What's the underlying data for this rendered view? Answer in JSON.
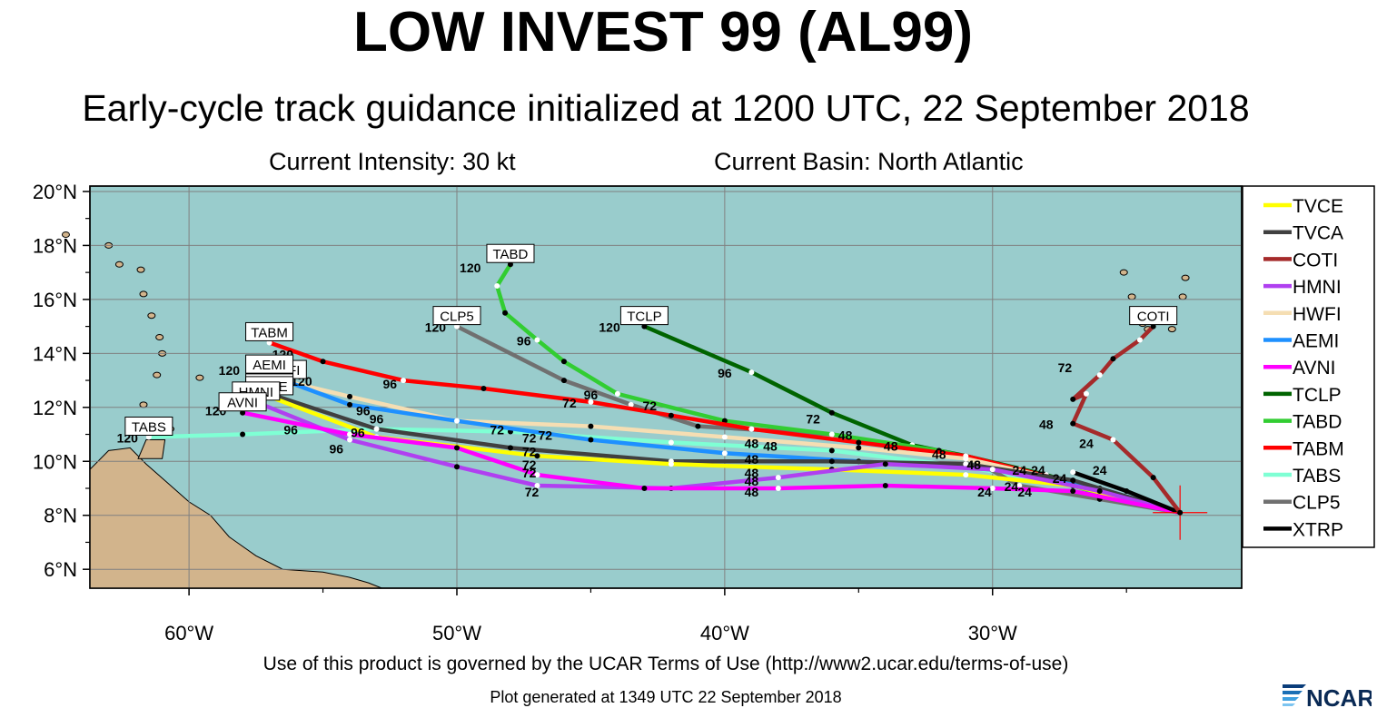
{
  "title": "LOW INVEST 99 (AL99)",
  "subtitle": "Early-cycle track guidance initialized at 1200 UTC, 22 September 2018",
  "current_intensity": "Current Intensity: 30 kt",
  "current_basin": "Current Basin: North Atlantic",
  "terms": "Use of this product is governed by the UCAR Terms of Use (http://www2.ucar.edu/terms-of-use)",
  "generated": "Plot generated at 1349 UTC   22 September 2018",
  "logo_text": "NCAR",
  "colors": {
    "ocean": "#99cccc",
    "land": "#d2b48c",
    "grid": "#808080"
  },
  "map": {
    "lon_range": [
      -63.7,
      -20.7
    ],
    "lat_range": [
      5.3,
      20.2
    ],
    "lat_ticks": [
      {
        "value": 20,
        "label": "20°N"
      },
      {
        "value": 18,
        "label": "18°N"
      },
      {
        "value": 16,
        "label": "16°N"
      },
      {
        "value": 14,
        "label": "14°N"
      },
      {
        "value": 12,
        "label": "12°N"
      },
      {
        "value": 10,
        "label": "10°N"
      },
      {
        "value": 8,
        "label": "8°N"
      },
      {
        "value": 6,
        "label": "6°N"
      }
    ],
    "lon_ticks": [
      {
        "value": -60,
        "label": "60°W"
      },
      {
        "value": -50,
        "label": "50°W"
      },
      {
        "value": -40,
        "label": "40°W"
      },
      {
        "value": -30,
        "label": "30°W"
      }
    ],
    "storm_position": {
      "lon": -23.0,
      "lat": 8.1
    }
  },
  "legend": [
    {
      "name": "TVCE",
      "color": "#ffff00"
    },
    {
      "name": "TVCA",
      "color": "#404040"
    },
    {
      "name": "COTI",
      "color": "#a52a2a"
    },
    {
      "name": "HMNI",
      "color": "#b040f0"
    },
    {
      "name": "HWFI",
      "color": "#f5deb3"
    },
    {
      "name": "AEMI",
      "color": "#1e90ff"
    },
    {
      "name": "AVNI",
      "color": "#ff00ff"
    },
    {
      "name": "TCLP",
      "color": "#006400"
    },
    {
      "name": "TABD",
      "color": "#32cd32"
    },
    {
      "name": "TABM",
      "color": "#ff0000"
    },
    {
      "name": "TABS",
      "color": "#7fffd4"
    },
    {
      "name": "CLP5",
      "color": "#707070"
    },
    {
      "name": "XTRP",
      "color": "#000000"
    }
  ],
  "tracks": [
    {
      "name": "TABS",
      "color": "#7fffd4",
      "label": "TABS",
      "points": [
        [
          -23.0,
          8.1
        ],
        [
          -26.5,
          9.0
        ],
        [
          -31.0,
          9.8
        ],
        [
          -36.0,
          10.4
        ],
        [
          -42.0,
          10.7
        ],
        [
          -48.0,
          11.1
        ],
        [
          -53.0,
          11.2
        ],
        [
          -58.0,
          11.0
        ],
        [
          -61.5,
          10.9
        ]
      ]
    },
    {
      "name": "CLP5",
      "color": "#707070",
      "label": "CLP5",
      "points": [
        [
          -23.0,
          8.1
        ],
        [
          -26.0,
          8.6
        ],
        [
          -29.0,
          9.1
        ],
        [
          -31.0,
          10.2
        ],
        [
          -36.0,
          11.0
        ],
        [
          -41.0,
          11.3
        ],
        [
          -43.5,
          12.1
        ],
        [
          -46.0,
          13.0
        ],
        [
          -50.0,
          15.0
        ]
      ]
    },
    {
      "name": "TCLP",
      "color": "#006400",
      "label": "TCLP",
      "points": [
        [
          -23.0,
          8.1
        ],
        [
          -26.0,
          8.9
        ],
        [
          -28.0,
          9.5
        ],
        [
          -31.0,
          10.2
        ],
        [
          -33.0,
          10.6
        ],
        [
          -36.0,
          11.8
        ],
        [
          -39.0,
          13.3
        ],
        [
          -43.0,
          15.0
        ]
      ]
    },
    {
      "name": "TABD",
      "color": "#32cd32",
      "label": "TABD",
      "points": [
        [
          -23.0,
          8.1
        ],
        [
          -26.0,
          8.8
        ],
        [
          -29.0,
          9.7
        ],
        [
          -32.0,
          10.4
        ],
        [
          -36.0,
          11.0
        ],
        [
          -40.0,
          11.5
        ],
        [
          -44.0,
          12.5
        ],
        [
          -46.0,
          13.7
        ],
        [
          -47.0,
          14.5
        ],
        [
          -48.2,
          15.5
        ],
        [
          -48.5,
          16.5
        ],
        [
          -48.0,
          17.3
        ]
      ]
    },
    {
      "name": "TABM",
      "color": "#ff0000",
      "label": "TABM",
      "points": [
        [
          -23.0,
          8.1
        ],
        [
          -27.0,
          9.2
        ],
        [
          -31.0,
          10.2
        ],
        [
          -35.0,
          10.7
        ],
        [
          -39.0,
          11.2
        ],
        [
          -42.0,
          11.7
        ],
        [
          -45.0,
          12.2
        ],
        [
          -49.0,
          12.7
        ],
        [
          -52.0,
          13.0
        ],
        [
          -55.0,
          13.7
        ],
        [
          -57.0,
          14.4
        ]
      ]
    },
    {
      "name": "HWFI",
      "color": "#f5deb3",
      "label": "HWFI",
      "points": [
        [
          -23.0,
          8.1
        ],
        [
          -26.5,
          9.1
        ],
        [
          -31.0,
          10.1
        ],
        [
          -35.0,
          10.5
        ],
        [
          -40.0,
          10.9
        ],
        [
          -45.0,
          11.3
        ],
        [
          -50.0,
          11.5
        ],
        [
          -54.0,
          12.4
        ],
        [
          -56.5,
          13.0
        ]
      ]
    },
    {
      "name": "AEMI",
      "color": "#1e90ff",
      "label": "AEMI",
      "points": [
        [
          -23.0,
          8.1
        ],
        [
          -26.0,
          9.0
        ],
        [
          -30.0,
          9.7
        ],
        [
          -35.0,
          10.0
        ],
        [
          -40.0,
          10.3
        ],
        [
          -45.0,
          10.8
        ],
        [
          -50.0,
          11.5
        ],
        [
          -54.0,
          12.1
        ],
        [
          -57.0,
          13.2
        ]
      ]
    },
    {
      "name": "TVCA",
      "color": "#404040",
      "label": "TVCA",
      "points": [
        [
          -23.0,
          8.1
        ],
        [
          -27.0,
          9.3
        ],
        [
          -31.0,
          9.9
        ],
        [
          -36.0,
          10.0
        ],
        [
          -42.0,
          10.0
        ],
        [
          -48.0,
          10.5
        ],
        [
          -53.0,
          11.2
        ],
        [
          -57.0,
          12.5
        ]
      ]
    },
    {
      "name": "TVCE",
      "color": "#ffff00",
      "label": "TVCE",
      "points": [
        [
          -23.0,
          8.1
        ],
        [
          -27.0,
          9.1
        ],
        [
          -31.0,
          9.5
        ],
        [
          -36.0,
          9.7
        ],
        [
          -42.0,
          9.9
        ],
        [
          -47.0,
          10.2
        ],
        [
          -53.0,
          10.9
        ],
        [
          -57.0,
          12.4
        ]
      ]
    },
    {
      "name": "HMNI",
      "color": "#b040f0",
      "label": "HMNI",
      "points": [
        [
          -23.0,
          8.1
        ],
        [
          -26.0,
          8.9
        ],
        [
          -30.0,
          9.7
        ],
        [
          -34.0,
          9.9
        ],
        [
          -38.0,
          9.4
        ],
        [
          -42.0,
          9.0
        ],
        [
          -47.0,
          9.1
        ],
        [
          -50.0,
          9.8
        ],
        [
          -54.0,
          10.8
        ],
        [
          -57.5,
          12.2
        ]
      ]
    },
    {
      "name": "AVNI",
      "color": "#ff00ff",
      "label": "AVNI",
      "points": [
        [
          -23.0,
          8.1
        ],
        [
          -27.0,
          8.9
        ],
        [
          -30.0,
          9.0
        ],
        [
          -34.0,
          9.1
        ],
        [
          -38.0,
          9.0
        ],
        [
          -43.0,
          9.0
        ],
        [
          -47.0,
          9.5
        ],
        [
          -50.0,
          10.5
        ],
        [
          -54.0,
          11.0
        ],
        [
          -58.0,
          11.8
        ]
      ]
    },
    {
      "name": "XTRP",
      "color": "#000000",
      "label": "",
      "points": [
        [
          -23.0,
          8.1
        ],
        [
          -25.0,
          8.9
        ],
        [
          -27.0,
          9.6
        ]
      ]
    },
    {
      "name": "COTI",
      "color": "#a52a2a",
      "label": "COTI",
      "points": [
        [
          -23.0,
          8.1
        ],
        [
          -24.0,
          9.4
        ],
        [
          -25.5,
          10.8
        ],
        [
          -27.0,
          11.4
        ],
        [
          -26.5,
          12.5
        ],
        [
          -27.0,
          12.3
        ],
        [
          -26.0,
          13.2
        ],
        [
          -25.5,
          13.8
        ],
        [
          -24.5,
          14.5
        ],
        [
          -24.0,
          15.0
        ]
      ]
    }
  ],
  "hour_labels": [
    {
      "text": "120",
      "lon": -62.3,
      "lat": 10.7
    },
    {
      "text": "120",
      "lon": -59.0,
      "lat": 11.7
    },
    {
      "text": "120",
      "lon": -58.5,
      "lat": 13.2
    },
    {
      "text": "120",
      "lon": -56.5,
      "lat": 13.8
    },
    {
      "text": "120",
      "lon": -55.8,
      "lat": 12.8
    },
    {
      "text": "120",
      "lon": -50.8,
      "lat": 14.8
    },
    {
      "text": "120",
      "lon": -49.5,
      "lat": 17.0
    },
    {
      "text": "120",
      "lon": -44.3,
      "lat": 14.8
    },
    {
      "text": "96",
      "lon": -56.2,
      "lat": 11.0
    },
    {
      "text": "96",
      "lon": -54.5,
      "lat": 10.3
    },
    {
      "text": "96",
      "lon": -53.5,
      "lat": 11.7
    },
    {
      "text": "96",
      "lon": -53.0,
      "lat": 11.4
    },
    {
      "text": "96",
      "lon": -52.5,
      "lat": 12.7
    },
    {
      "text": "96",
      "lon": -53.7,
      "lat": 10.9
    },
    {
      "text": "96",
      "lon": -45.0,
      "lat": 12.3
    },
    {
      "text": "96",
      "lon": -47.5,
      "lat": 14.3
    },
    {
      "text": "96",
      "lon": -40.0,
      "lat": 13.1
    },
    {
      "text": "72",
      "lon": -48.5,
      "lat": 11.0
    },
    {
      "text": "72",
      "lon": -47.3,
      "lat": 10.7
    },
    {
      "text": "72",
      "lon": -47.3,
      "lat": 10.2
    },
    {
      "text": "72",
      "lon": -47.3,
      "lat": 9.7
    },
    {
      "text": "72",
      "lon": -47.3,
      "lat": 9.4
    },
    {
      "text": "72",
      "lon": -47.2,
      "lat": 8.7
    },
    {
      "text": "72",
      "lon": -46.7,
      "lat": 10.8
    },
    {
      "text": "72",
      "lon": -45.8,
      "lat": 12.0
    },
    {
      "text": "72",
      "lon": -42.8,
      "lat": 11.9
    },
    {
      "text": "72",
      "lon": -36.7,
      "lat": 11.4
    },
    {
      "text": "72",
      "lon": -27.3,
      "lat": 13.3
    },
    {
      "text": "48",
      "lon": -39.0,
      "lat": 10.5
    },
    {
      "text": "48",
      "lon": -39.0,
      "lat": 9.9
    },
    {
      "text": "48",
      "lon": -39.0,
      "lat": 9.4
    },
    {
      "text": "48",
      "lon": -39.0,
      "lat": 9.1
    },
    {
      "text": "48",
      "lon": -39.0,
      "lat": 8.7
    },
    {
      "text": "48",
      "lon": -38.3,
      "lat": 10.4
    },
    {
      "text": "48",
      "lon": -35.5,
      "lat": 10.8
    },
    {
      "text": "48",
      "lon": -33.8,
      "lat": 10.4
    },
    {
      "text": "48",
      "lon": -32.0,
      "lat": 10.1
    },
    {
      "text": "48",
      "lon": -30.7,
      "lat": 9.7
    },
    {
      "text": "48",
      "lon": -28.0,
      "lat": 11.2
    },
    {
      "text": "24",
      "lon": -29.0,
      "lat": 9.5
    },
    {
      "text": "24",
      "lon": -28.3,
      "lat": 9.5
    },
    {
      "text": "24",
      "lon": -27.5,
      "lat": 9.2
    },
    {
      "text": "24",
      "lon": -26.0,
      "lat": 9.5
    },
    {
      "text": "24",
      "lon": -30.3,
      "lat": 8.7
    },
    {
      "text": "24",
      "lon": -29.3,
      "lat": 8.9
    },
    {
      "text": "24",
      "lon": -28.8,
      "lat": 8.7
    },
    {
      "text": "24",
      "lon": -26.5,
      "lat": 10.5
    }
  ]
}
